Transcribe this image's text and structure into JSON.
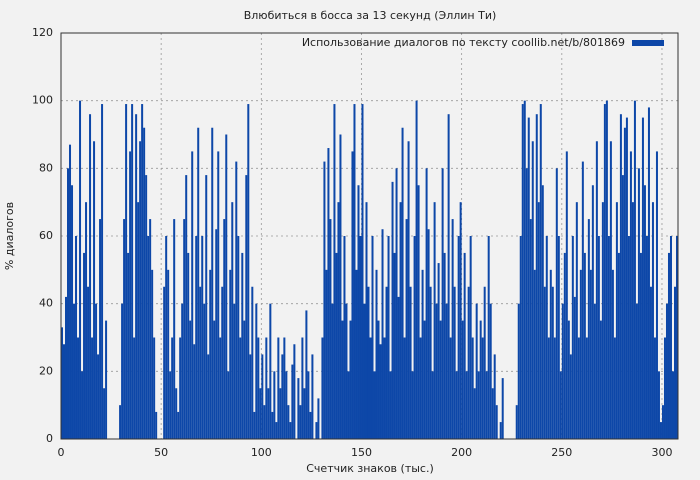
{
  "chart_data": {
    "type": "bar",
    "title": "Влюбиться в босса за 13 секунд (Эллин Ти)",
    "xlabel": "Счетчик знаков (тыс.)",
    "ylabel": "% диалогов",
    "legend_position": "upper right",
    "grid": true,
    "xlim": [
      0,
      308
    ],
    "ylim": [
      0,
      120
    ],
    "xticks": [
      0,
      50,
      100,
      150,
      200,
      250,
      300
    ],
    "yticks": [
      0,
      20,
      40,
      60,
      80,
      100,
      120
    ],
    "series": [
      {
        "name": "Использование диалогов по тексту coollib.net/b/801869",
        "color": "#0d47a8",
        "x": [
          0,
          1,
          2,
          3,
          4,
          5,
          6,
          7,
          8,
          9,
          10,
          11,
          12,
          13,
          14,
          15,
          16,
          17,
          18,
          19,
          20,
          21,
          22,
          23,
          24,
          25,
          26,
          27,
          28,
          29,
          30,
          31,
          32,
          33,
          34,
          35,
          36,
          37,
          38,
          39,
          40,
          41,
          42,
          43,
          44,
          45,
          46,
          47,
          48,
          49,
          50,
          51,
          52,
          53,
          54,
          55,
          56,
          57,
          58,
          59,
          60,
          61,
          62,
          63,
          64,
          65,
          66,
          67,
          68,
          69,
          70,
          71,
          72,
          73,
          74,
          75,
          76,
          77,
          78,
          79,
          80,
          81,
          82,
          83,
          84,
          85,
          86,
          87,
          88,
          89,
          90,
          91,
          92,
          93,
          94,
          95,
          96,
          97,
          98,
          99,
          100,
          101,
          102,
          103,
          104,
          105,
          106,
          107,
          108,
          109,
          110,
          111,
          112,
          113,
          114,
          115,
          116,
          117,
          118,
          119,
          120,
          121,
          122,
          123,
          124,
          125,
          126,
          127,
          128,
          129,
          130,
          131,
          132,
          133,
          134,
          135,
          136,
          137,
          138,
          139,
          140,
          141,
          142,
          143,
          144,
          145,
          146,
          147,
          148,
          149,
          150,
          151,
          152,
          153,
          154,
          155,
          156,
          157,
          158,
          159,
          160,
          161,
          162,
          163,
          164,
          165,
          166,
          167,
          168,
          169,
          170,
          171,
          172,
          173,
          174,
          175,
          176,
          177,
          178,
          179,
          180,
          181,
          182,
          183,
          184,
          185,
          186,
          187,
          188,
          189,
          190,
          191,
          192,
          193,
          194,
          195,
          196,
          197,
          198,
          199,
          200,
          201,
          202,
          203,
          204,
          205,
          206,
          207,
          208,
          209,
          210,
          211,
          212,
          213,
          214,
          215,
          216,
          217,
          218,
          219,
          220,
          221,
          222,
          223,
          224,
          225,
          226,
          227,
          228,
          229,
          230,
          231,
          232,
          233,
          234,
          235,
          236,
          237,
          238,
          239,
          240,
          241,
          242,
          243,
          244,
          245,
          246,
          247,
          248,
          249,
          250,
          251,
          252,
          253,
          254,
          255,
          256,
          257,
          258,
          259,
          260,
          261,
          262,
          263,
          264,
          265,
          266,
          267,
          268,
          269,
          270,
          271,
          272,
          273,
          274,
          275,
          276,
          277,
          278,
          279,
          280,
          281,
          282,
          283,
          284,
          285,
          286,
          287,
          288,
          289,
          290,
          291,
          292,
          293,
          294,
          295,
          296,
          297,
          298,
          299,
          300,
          301,
          302,
          303,
          304,
          305,
          306,
          307
        ],
        "values": [
          33,
          28,
          42,
          80,
          87,
          75,
          40,
          60,
          30,
          100,
          20,
          55,
          70,
          45,
          96,
          30,
          88,
          40,
          25,
          65,
          99,
          15,
          35,
          0,
          0,
          0,
          0,
          0,
          0,
          10,
          40,
          65,
          99,
          55,
          85,
          99,
          30,
          96,
          70,
          88,
          99,
          92,
          78,
          60,
          65,
          50,
          30,
          8,
          0,
          0,
          0,
          45,
          60,
          50,
          20,
          30,
          65,
          15,
          8,
          30,
          40,
          65,
          78,
          55,
          35,
          85,
          28,
          60,
          92,
          45,
          60,
          40,
          78,
          25,
          50,
          92,
          35,
          62,
          85,
          30,
          45,
          65,
          90,
          20,
          50,
          70,
          40,
          82,
          60,
          30,
          55,
          35,
          78,
          99,
          25,
          45,
          8,
          40,
          30,
          15,
          25,
          10,
          30,
          15,
          40,
          8,
          20,
          5,
          30,
          15,
          25,
          30,
          20,
          10,
          5,
          22,
          28,
          0,
          18,
          10,
          30,
          15,
          38,
          20,
          8,
          25,
          0,
          5,
          12,
          0,
          30,
          82,
          50,
          86,
          65,
          40,
          99,
          55,
          70,
          90,
          35,
          60,
          40,
          20,
          35,
          85,
          99,
          50,
          75,
          60,
          99,
          40,
          70,
          45,
          30,
          60,
          20,
          50,
          35,
          28,
          62,
          30,
          45,
          60,
          20,
          76,
          55,
          80,
          42,
          70,
          92,
          30,
          65,
          88,
          45,
          20,
          60,
          100,
          75,
          30,
          50,
          35,
          80,
          62,
          45,
          20,
          70,
          40,
          52,
          35,
          80,
          55,
          40,
          96,
          30,
          65,
          45,
          20,
          60,
          70,
          35,
          55,
          20,
          45,
          60,
          30,
          15,
          40,
          20,
          35,
          30,
          45,
          20,
          60,
          40,
          15,
          25,
          10,
          0,
          5,
          18,
          0,
          0,
          0,
          0,
          0,
          0,
          10,
          40,
          60,
          99,
          100,
          80,
          95,
          65,
          88,
          50,
          96,
          70,
          99,
          75,
          45,
          60,
          30,
          50,
          45,
          30,
          80,
          60,
          20,
          40,
          55,
          85,
          35,
          25,
          60,
          42,
          70,
          30,
          50,
          82,
          55,
          30,
          65,
          50,
          75,
          40,
          88,
          60,
          35,
          70,
          99,
          100,
          60,
          88,
          50,
          30,
          70,
          55,
          96,
          78,
          92,
          95,
          60,
          85,
          70,
          100,
          40,
          80,
          55,
          95,
          75,
          60,
          98,
          45,
          70,
          30,
          85,
          20,
          5,
          10,
          30,
          40,
          55,
          60,
          20,
          45,
          60
        ]
      }
    ]
  }
}
